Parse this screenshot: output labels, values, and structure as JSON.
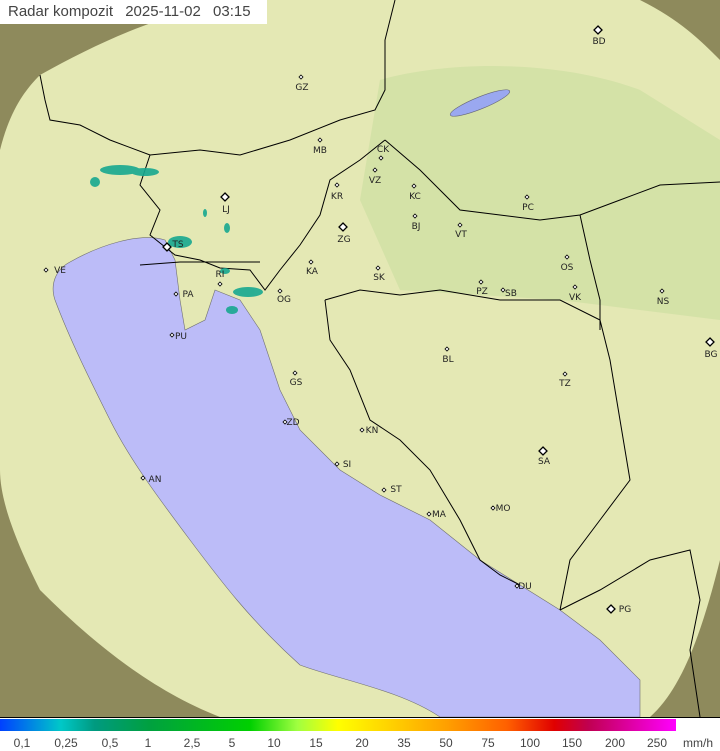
{
  "header": {
    "title": "Radar kompozit",
    "date": "2025-11-02",
    "time": "03:15"
  },
  "legend": {
    "unit": "mm/h",
    "ticks": [
      "0,1",
      "0,25",
      "0,5",
      "1",
      "2,5",
      "5",
      "10",
      "15",
      "20",
      "35",
      "50",
      "75",
      "100",
      "150",
      "200",
      "250"
    ]
  },
  "colors": {
    "sea": "#bcbcf8",
    "coverage_land": "#e4e8b4",
    "outside_land": "#8e8a5c",
    "rain": "#18a890"
  },
  "cities": {
    "GZ": "GZ",
    "MB": "MB",
    "CK": "CK",
    "VZ": "VZ",
    "KR": "KR",
    "KC": "KC",
    "PC": "PC",
    "BD": "BD",
    "LJ": "LJ",
    "ZG": "ZG",
    "BJ": "BJ",
    "VT": "VT",
    "OS": "OS",
    "KA": "KA",
    "SK": "SK",
    "VK": "VK",
    "NS": "NS",
    "PZ": "PZ",
    "SB": "SB",
    "PA": "PA",
    "OG": "OG",
    "RI": "RI",
    "TS": "TS",
    "VE": "VE",
    "PU": "PU",
    "BL": "BL",
    "BG": "BG",
    "GS": "GS",
    "TZ": "TZ",
    "ZD": "ZD",
    "KN": "KN",
    "SI": "SI",
    "SA": "SA",
    "ST": "ST",
    "AN": "AN",
    "MA": "MA",
    "MO": "MO",
    "DU": "DU",
    "PG": "PG"
  }
}
